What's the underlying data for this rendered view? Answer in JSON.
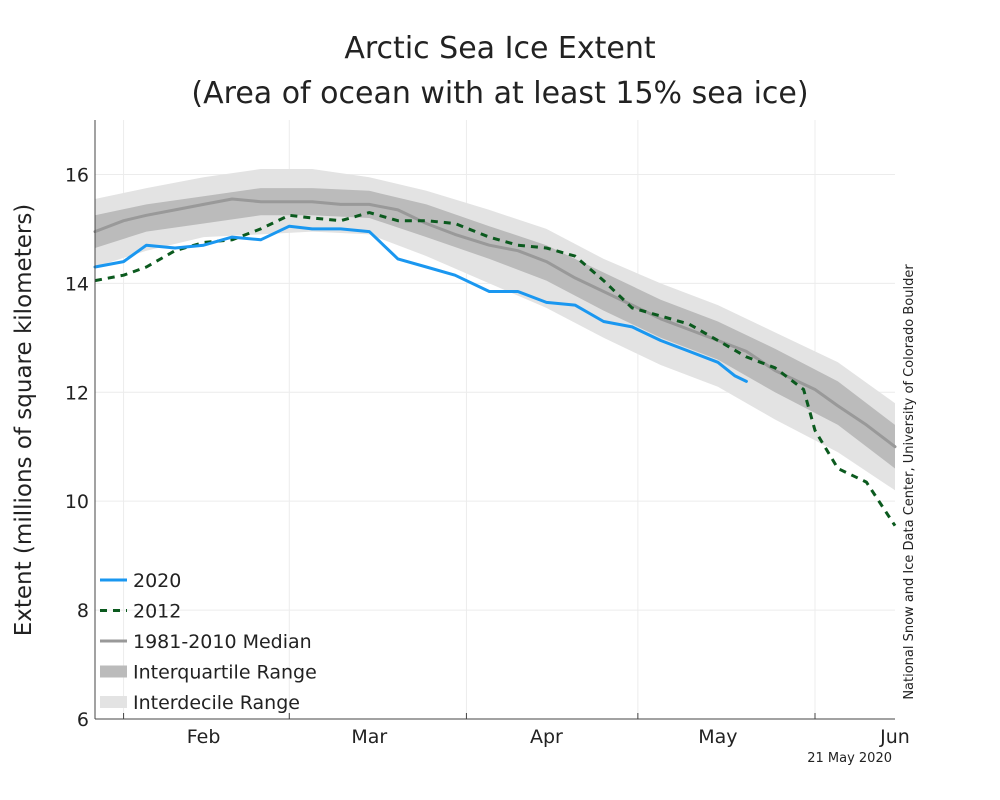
{
  "chart_data": {
    "type": "line",
    "title_line1": "Arctic Sea Ice Extent",
    "title_line2": "(Area of ocean with at least 15% sea ice)",
    "ylabel": "Extent (millions of square kilometers)",
    "xlabel": "",
    "ylim": [
      6,
      17
    ],
    "xlim": [
      "2020-01-27",
      "2020-06-15"
    ],
    "y_ticks": [
      6,
      8,
      10,
      12,
      14,
      16
    ],
    "x_month_labels": [
      {
        "label": "Feb",
        "date": "2020-02-15"
      },
      {
        "label": "Mar",
        "date": "2020-03-15"
      },
      {
        "label": "Apr",
        "date": "2020-04-15"
      },
      {
        "label": "May",
        "date": "2020-05-15"
      },
      {
        "label": "Jun",
        "date": "2020-06-15"
      }
    ],
    "x_month_boundaries": [
      "2020-02-01",
      "2020-03-01",
      "2020-04-01",
      "2020-05-01",
      "2020-06-01"
    ],
    "grid": true,
    "legend_position": "bottom-left",
    "series": [
      {
        "name": "2020",
        "style": "solid",
        "color": "#1a97f0",
        "x": [
          "2020-01-27",
          "2020-02-01",
          "2020-02-05",
          "2020-02-10",
          "2020-02-15",
          "2020-02-20",
          "2020-02-25",
          "2020-03-01",
          "2020-03-05",
          "2020-03-10",
          "2020-03-15",
          "2020-03-20",
          "2020-03-25",
          "2020-03-30",
          "2020-04-05",
          "2020-04-10",
          "2020-04-15",
          "2020-04-20",
          "2020-04-25",
          "2020-04-30",
          "2020-05-05",
          "2020-05-10",
          "2020-05-15",
          "2020-05-18",
          "2020-05-20"
        ],
        "values": [
          14.3,
          14.4,
          14.7,
          14.65,
          14.7,
          14.85,
          14.8,
          15.05,
          15.0,
          15.0,
          14.95,
          14.45,
          14.3,
          14.15,
          13.85,
          13.85,
          13.65,
          13.6,
          13.3,
          13.2,
          12.95,
          12.75,
          12.55,
          12.3,
          12.2
        ]
      },
      {
        "name": "2012",
        "style": "dashed",
        "color": "#0b5a1e",
        "x": [
          "2020-01-27",
          "2020-02-01",
          "2020-02-05",
          "2020-02-10",
          "2020-02-15",
          "2020-02-20",
          "2020-02-25",
          "2020-03-01",
          "2020-03-05",
          "2020-03-10",
          "2020-03-15",
          "2020-03-20",
          "2020-03-25",
          "2020-03-30",
          "2020-04-05",
          "2020-04-10",
          "2020-04-15",
          "2020-04-20",
          "2020-04-25",
          "2020-04-30",
          "2020-05-05",
          "2020-05-10",
          "2020-05-15",
          "2020-05-20",
          "2020-05-25",
          "2020-05-30",
          "2020-06-01",
          "2020-06-05",
          "2020-06-10",
          "2020-06-15"
        ],
        "values": [
          14.05,
          14.15,
          14.3,
          14.6,
          14.75,
          14.8,
          15.0,
          15.25,
          15.2,
          15.15,
          15.3,
          15.15,
          15.15,
          15.1,
          14.85,
          14.7,
          14.65,
          14.5,
          14.05,
          13.55,
          13.4,
          13.25,
          12.95,
          12.65,
          12.45,
          12.05,
          11.3,
          10.6,
          10.35,
          9.55
        ]
      },
      {
        "name": "1981-2010 Median",
        "style": "solid",
        "color": "#999999",
        "x": [
          "2020-01-27",
          "2020-02-01",
          "2020-02-05",
          "2020-02-10",
          "2020-02-15",
          "2020-02-20",
          "2020-02-25",
          "2020-03-01",
          "2020-03-05",
          "2020-03-10",
          "2020-03-15",
          "2020-03-20",
          "2020-03-25",
          "2020-03-30",
          "2020-04-05",
          "2020-04-10",
          "2020-04-15",
          "2020-04-20",
          "2020-04-25",
          "2020-04-30",
          "2020-05-05",
          "2020-05-10",
          "2020-05-15",
          "2020-05-20",
          "2020-05-25",
          "2020-05-30",
          "2020-06-01",
          "2020-06-05",
          "2020-06-10",
          "2020-06-15"
        ],
        "values": [
          14.95,
          15.15,
          15.25,
          15.35,
          15.45,
          15.55,
          15.5,
          15.5,
          15.5,
          15.45,
          15.45,
          15.35,
          15.1,
          14.9,
          14.7,
          14.6,
          14.4,
          14.1,
          13.85,
          13.6,
          13.35,
          13.15,
          12.95,
          12.75,
          12.4,
          12.15,
          12.05,
          11.75,
          11.4,
          11.0
        ]
      }
    ],
    "bands": [
      {
        "name": "Interquartile Range",
        "color": "#bbbbbb",
        "x": [
          "2020-01-27",
          "2020-02-05",
          "2020-02-15",
          "2020-02-25",
          "2020-03-05",
          "2020-03-15",
          "2020-03-25",
          "2020-04-05",
          "2020-04-15",
          "2020-04-25",
          "2020-05-05",
          "2020-05-15",
          "2020-05-25",
          "2020-06-05",
          "2020-06-15"
        ],
        "upper": [
          15.25,
          15.45,
          15.6,
          15.75,
          15.75,
          15.7,
          15.45,
          15.05,
          14.7,
          14.2,
          13.7,
          13.3,
          12.8,
          12.2,
          11.4
        ],
        "lower": [
          14.65,
          14.95,
          15.1,
          15.25,
          15.25,
          15.2,
          14.85,
          14.45,
          14.05,
          13.5,
          13.0,
          12.6,
          12.0,
          11.4,
          10.6
        ]
      },
      {
        "name": "Interdecile Range",
        "color": "#e3e3e3",
        "x": [
          "2020-01-27",
          "2020-02-05",
          "2020-02-15",
          "2020-02-25",
          "2020-03-05",
          "2020-03-15",
          "2020-03-25",
          "2020-04-05",
          "2020-04-15",
          "2020-04-25",
          "2020-05-05",
          "2020-05-15",
          "2020-05-25",
          "2020-06-05",
          "2020-06-15"
        ],
        "upper": [
          15.55,
          15.75,
          15.95,
          16.1,
          16.1,
          15.95,
          15.7,
          15.35,
          15.0,
          14.45,
          14.0,
          13.6,
          13.1,
          12.55,
          11.8
        ],
        "lower": [
          14.3,
          14.6,
          14.85,
          14.9,
          14.95,
          14.9,
          14.5,
          14.0,
          13.55,
          13.0,
          12.5,
          12.1,
          11.5,
          10.9,
          10.2
        ]
      }
    ],
    "legend": [
      {
        "label": "2020",
        "kind": "line",
        "color": "#1a97f0",
        "style": "solid"
      },
      {
        "label": "2012",
        "kind": "line",
        "color": "#0b5a1e",
        "style": "dashed"
      },
      {
        "label": "1981-2010 Median",
        "kind": "line",
        "color": "#999999",
        "style": "solid"
      },
      {
        "label": "Interquartile Range",
        "kind": "band",
        "color": "#bbbbbb"
      },
      {
        "label": "Interdecile Range",
        "kind": "band",
        "color": "#e3e3e3"
      }
    ],
    "credit": "National Snow and Ice Data Center, University of Colorado Boulder",
    "date_stamp": "21 May 2020"
  }
}
